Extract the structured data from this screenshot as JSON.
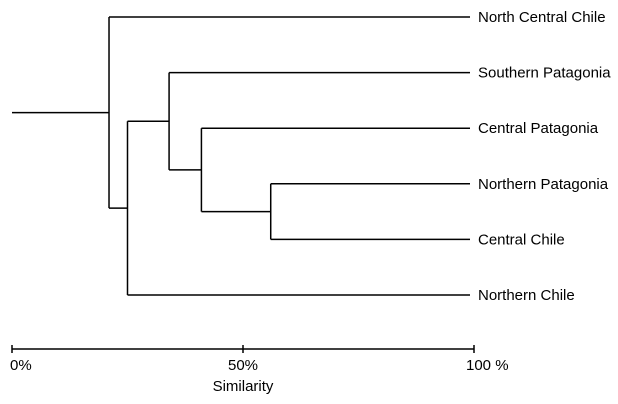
{
  "dendrogram": {
    "leaves": [
      {
        "id": "ncc",
        "label": "North Central Chile"
      },
      {
        "id": "sp",
        "label": "Southern Patagonia"
      },
      {
        "id": "cp",
        "label": "Central Patagonia"
      },
      {
        "id": "np",
        "label": "Northern Patagonia"
      },
      {
        "id": "cc",
        "label": "Central Chile"
      },
      {
        "id": "nc",
        "label": "Northern Chile"
      }
    ],
    "merges": [
      {
        "id": "m1",
        "children": [
          "np",
          "cc"
        ],
        "similarity": 56
      },
      {
        "id": "m2",
        "children": [
          "cp",
          "m1"
        ],
        "similarity": 41
      },
      {
        "id": "m3",
        "children": [
          "sp",
          "m2"
        ],
        "similarity": 34
      },
      {
        "id": "m4",
        "children": [
          "m3",
          "nc"
        ],
        "similarity": 25
      },
      {
        "id": "m5",
        "children": [
          "ncc",
          "m4"
        ],
        "similarity": 21
      }
    ],
    "axis": {
      "min": 0,
      "max": 100,
      "ticks": [
        {
          "value": 0,
          "label": "0%"
        },
        {
          "value": 50,
          "label": "50%"
        },
        {
          "value": 100,
          "label": "100 %"
        }
      ],
      "title": "Similarity"
    }
  }
}
